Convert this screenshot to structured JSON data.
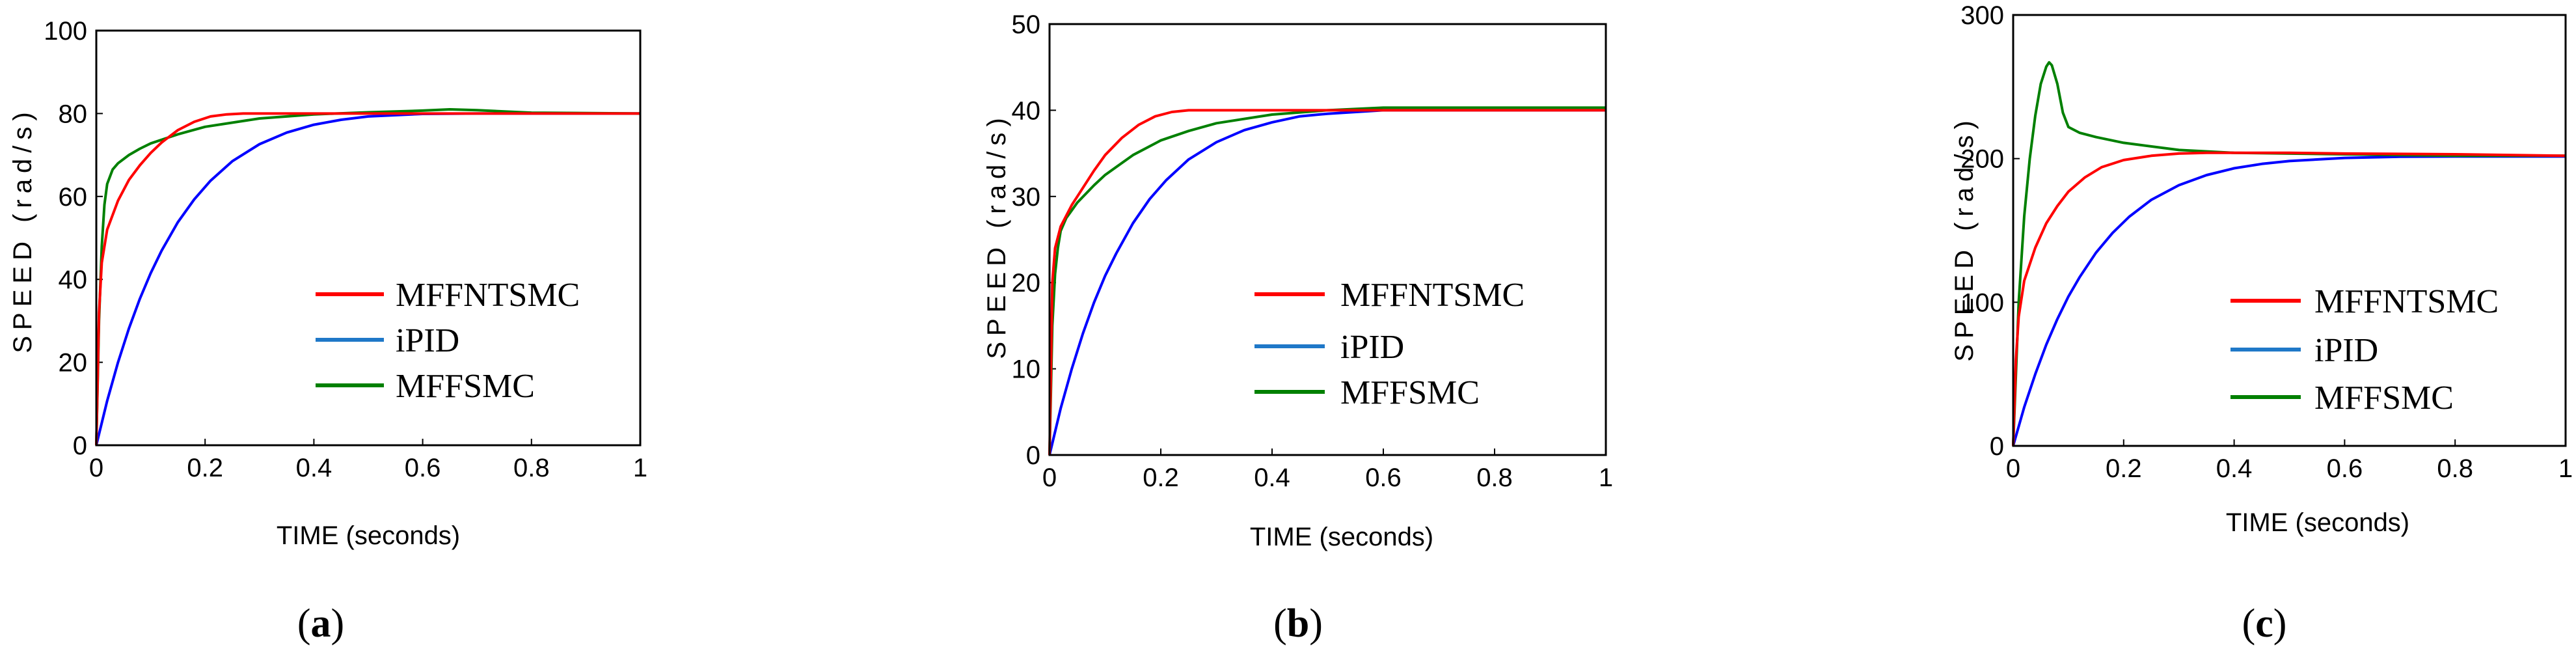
{
  "figure": {
    "panels": [
      {
        "caption_open": "(",
        "caption_letter": "a",
        "caption_close": ")"
      },
      {
        "caption_open": "(",
        "caption_letter": "b",
        "caption_close": ")"
      },
      {
        "caption_open": "(",
        "caption_letter": "c",
        "caption_close": ")"
      }
    ]
  },
  "chart_data": [
    {
      "type": "line",
      "title": "",
      "xlabel": "TIME (seconds)",
      "ylabel": "SPEED (rad/s)",
      "xlim": [
        0,
        1
      ],
      "ylim": [
        0,
        100
      ],
      "xticks": [
        "0",
        "0.2",
        "0.4",
        "0.6",
        "0.8",
        "1"
      ],
      "yticks": [
        "0",
        "20",
        "40",
        "60",
        "80",
        "100"
      ],
      "legend": "center-right",
      "series": [
        {
          "name": "MFFNTSMC",
          "color": "#ff0000",
          "x": [
            0,
            0.005,
            0.01,
            0.02,
            0.04,
            0.06,
            0.08,
            0.1,
            0.12,
            0.15,
            0.18,
            0.21,
            0.24,
            0.27,
            0.3,
            0.4,
            0.6,
            0.8,
            1.0
          ],
          "y": [
            0,
            32,
            44,
            52,
            59,
            64,
            67.5,
            70.5,
            73,
            76,
            78,
            79.3,
            79.8,
            80,
            80,
            80,
            80,
            80,
            80
          ]
        },
        {
          "name": "iPID",
          "color": "#0000ff",
          "x": [
            0,
            0.02,
            0.04,
            0.06,
            0.08,
            0.1,
            0.12,
            0.15,
            0.18,
            0.21,
            0.25,
            0.3,
            0.35,
            0.4,
            0.45,
            0.5,
            0.6,
            0.7,
            0.8,
            1.0
          ],
          "y": [
            0,
            10.7,
            20,
            28.2,
            35.3,
            41.5,
            46.9,
            53.8,
            59.3,
            63.8,
            68.5,
            72.6,
            75.4,
            77.3,
            78.5,
            79.3,
            79.9,
            80,
            80,
            80
          ]
        },
        {
          "name": "MFFSMC",
          "color": "#008000",
          "x": [
            0,
            0.005,
            0.01,
            0.015,
            0.02,
            0.03,
            0.04,
            0.06,
            0.08,
            0.1,
            0.15,
            0.2,
            0.3,
            0.4,
            0.5,
            0.6,
            0.65,
            0.7,
            0.8,
            1.0
          ],
          "y": [
            0,
            30,
            48,
            58,
            63,
            66.5,
            68,
            70,
            71.5,
            72.8,
            75,
            76.8,
            78.8,
            79.8,
            80.3,
            80.7,
            81,
            80.8,
            80.2,
            80
          ]
        }
      ]
    },
    {
      "type": "line",
      "title": "",
      "xlabel": "TIME (seconds)",
      "ylabel": "SPEED (rad/s)",
      "xlim": [
        0,
        1
      ],
      "ylim": [
        0,
        50
      ],
      "xticks": [
        "0",
        "0.2",
        "0.4",
        "0.6",
        "0.8",
        "1"
      ],
      "yticks": [
        "0",
        "10",
        "20",
        "30",
        "40",
        "50"
      ],
      "legend": "center-right",
      "series": [
        {
          "name": "MFFNTSMC",
          "color": "#ff0000",
          "x": [
            0,
            0.005,
            0.01,
            0.02,
            0.04,
            0.06,
            0.08,
            0.1,
            0.13,
            0.16,
            0.19,
            0.22,
            0.25,
            0.3,
            0.5,
            0.7,
            1.0
          ],
          "y": [
            0,
            20,
            24,
            26.5,
            29,
            31,
            33,
            34.8,
            36.8,
            38.3,
            39.3,
            39.8,
            40,
            40,
            40,
            40,
            40
          ]
        },
        {
          "name": "iPID",
          "color": "#0000ff",
          "x": [
            0,
            0.02,
            0.04,
            0.06,
            0.08,
            0.1,
            0.12,
            0.15,
            0.18,
            0.21,
            0.25,
            0.3,
            0.35,
            0.4,
            0.45,
            0.5,
            0.6,
            0.8,
            1.0
          ],
          "y": [
            0,
            5.4,
            10,
            14.1,
            17.7,
            20.8,
            23.4,
            26.9,
            29.7,
            31.9,
            34.3,
            36.3,
            37.7,
            38.6,
            39.3,
            39.6,
            40,
            40,
            40
          ]
        },
        {
          "name": "MFFSMC",
          "color": "#008000",
          "x": [
            0,
            0.005,
            0.01,
            0.015,
            0.02,
            0.03,
            0.05,
            0.08,
            0.1,
            0.15,
            0.2,
            0.25,
            0.3,
            0.4,
            0.5,
            0.6,
            0.8,
            1.0
          ],
          "y": [
            0,
            15,
            21,
            24,
            26,
            27.5,
            29.3,
            31.3,
            32.5,
            34.8,
            36.5,
            37.6,
            38.5,
            39.5,
            40,
            40.3,
            40.3,
            40.3
          ]
        }
      ]
    },
    {
      "type": "line",
      "title": "",
      "xlabel": "TIME (seconds)",
      "ylabel": "SPEED (rad/s)",
      "xlim": [
        0,
        1
      ],
      "ylim": [
        0,
        300
      ],
      "xticks": [
        "0",
        "0.2",
        "0.4",
        "0.6",
        "0.8",
        "1"
      ],
      "yticks": [
        "0",
        "100",
        "200",
        "300"
      ],
      "legend": "center-right",
      "series": [
        {
          "name": "MFFNTSMC",
          "color": "#ff0000",
          "x": [
            0,
            0.005,
            0.01,
            0.02,
            0.04,
            0.06,
            0.08,
            0.1,
            0.13,
            0.16,
            0.2,
            0.25,
            0.3,
            0.35,
            0.4,
            0.5,
            0.6,
            0.8,
            1.0
          ],
          "y": [
            0,
            60,
            90,
            115,
            138,
            155,
            167,
            177,
            187,
            194,
            199,
            202,
            203.5,
            204,
            204,
            204,
            203.5,
            203,
            202
          ]
        },
        {
          "name": "iPID",
          "color": "#0000ff",
          "x": [
            0,
            0.02,
            0.04,
            0.06,
            0.08,
            0.1,
            0.12,
            0.15,
            0.18,
            0.21,
            0.25,
            0.3,
            0.35,
            0.4,
            0.45,
            0.5,
            0.6,
            0.7,
            0.8,
            1.0
          ],
          "y": [
            0,
            27,
            50,
            70.5,
            88.3,
            104,
            117.3,
            134.5,
            148.3,
            159.5,
            171.3,
            181.5,
            188.5,
            193.3,
            196.3,
            198.3,
            200.5,
            201.3,
            201.5,
            201.5
          ]
        },
        {
          "name": "MFFSMC",
          "color": "#008000",
          "x": [
            0,
            0.01,
            0.02,
            0.03,
            0.04,
            0.05,
            0.06,
            0.065,
            0.07,
            0.08,
            0.09,
            0.1,
            0.12,
            0.15,
            0.2,
            0.3,
            0.4,
            0.6,
            0.8,
            1.0
          ],
          "y": [
            0,
            100,
            160,
            200,
            230,
            252,
            264,
            267,
            265,
            252,
            232,
            222,
            218,
            215,
            211,
            206,
            204,
            203,
            202,
            202
          ]
        }
      ]
    }
  ]
}
